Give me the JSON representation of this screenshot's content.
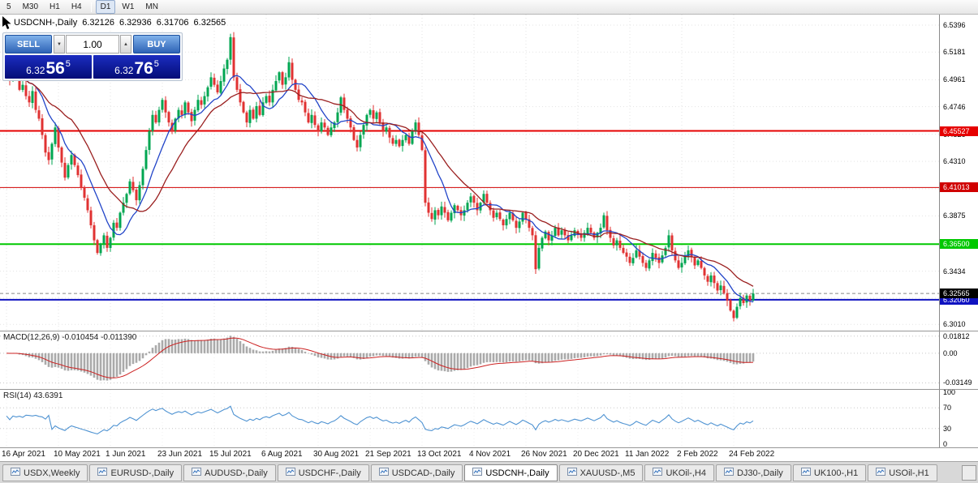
{
  "toolbar": {
    "items": [
      {
        "label": "5",
        "active": false
      },
      {
        "label": "M30",
        "active": false
      },
      {
        "label": "H1",
        "active": false
      },
      {
        "label": "H4",
        "active": false
      },
      {
        "sep": true
      },
      {
        "label": "D1",
        "active": true
      },
      {
        "label": "W1",
        "active": false
      },
      {
        "label": "MN",
        "active": false
      }
    ]
  },
  "chart": {
    "header": {
      "symbol": "USDCNH-,Daily",
      "open": "6.32126",
      "high": "6.32936",
      "low": "6.31706",
      "close": "6.32565"
    },
    "trade_panel": {
      "sell_label": "SELL",
      "buy_label": "BUY",
      "volume": "1.00",
      "up_glyph": "▲",
      "down_glyph": "▼",
      "sell_price": {
        "main": "6.32",
        "big": "56",
        "sup": "5"
      },
      "buy_price": {
        "main": "6.32",
        "big": "76",
        "sup": "5"
      }
    },
    "price_axis": {
      "ticks": [
        "6.5396",
        "6.5181",
        "6.4961",
        "6.4746",
        "6.4526",
        "6.4310",
        "6.4091",
        "6.3875",
        "6.3650",
        "6.3434",
        "6.3219",
        "6.3010"
      ]
    },
    "levels": [
      {
        "price": 6.45527,
        "label": "6.45527",
        "color": "#e60000",
        "width": 2
      },
      {
        "price": 6.41013,
        "label": "6.41013",
        "color": "#d00000",
        "width": 1
      },
      {
        "price": 6.365,
        "label": "6.36500",
        "color": "#00c800",
        "width": 2
      },
      {
        "price": 6.3206,
        "label": "6.32060",
        "color": "#0f12c0",
        "width": 2
      }
    ],
    "current_price": {
      "label": "6.32565",
      "color": "#000000"
    }
  },
  "macd": {
    "label": "MACD(12,26,9) -0.010454 -0.011390",
    "axis": [
      {
        "label": "0.01812",
        "value": 0.018125
      },
      {
        "label": "0.00",
        "value": 0
      },
      {
        "label": "-0.03149",
        "value": -0.03149
      }
    ]
  },
  "rsi": {
    "label": "RSI(14) 43.6391",
    "axis": [
      {
        "label": "100",
        "value": 100
      },
      {
        "label": "70",
        "value": 70
      },
      {
        "label": "30",
        "value": 30
      },
      {
        "label": "0",
        "value": 0
      }
    ],
    "levels": [
      70,
      30
    ]
  },
  "time_axis": {
    "labels": [
      "16 Apr 2021",
      "10 May 2021",
      "1 Jun 2021",
      "23 Jun 2021",
      "15 Jul 2021",
      "6 Aug 2021",
      "30 Aug 2021",
      "21 Sep 2021",
      "13 Oct 2021",
      "4 Nov 2021",
      "26 Nov 2021",
      "20 Dec 2021",
      "11 Jan 2022",
      "2 Feb 2022",
      "24 Feb 2022"
    ]
  },
  "tabs": {
    "items": [
      {
        "label": "USDX,Weekly",
        "active": false
      },
      {
        "label": "EURUSD-,Daily",
        "active": false
      },
      {
        "label": "AUDUSD-,Daily",
        "active": false
      },
      {
        "label": "USDCHF-,Daily",
        "active": false
      },
      {
        "label": "USDCAD-,Daily",
        "active": false
      },
      {
        "label": "USDCNH-,Daily",
        "active": true
      },
      {
        "label": "XAUUSD-,M5",
        "active": false
      },
      {
        "label": "UKOil-,H4",
        "active": false
      },
      {
        "label": "DJ30-,Daily",
        "active": false
      },
      {
        "label": "UK100-,H1",
        "active": false
      },
      {
        "label": "USOil-,H1",
        "active": false
      }
    ]
  },
  "chart_data": {
    "type": "candlestick",
    "symbol": "USDCNH",
    "timeframe": "Daily",
    "ylim": [
      6.296,
      6.548
    ],
    "spacing": 4,
    "left_pad": 8,
    "grid_x0": 8,
    "grid_dx": 64,
    "ma_fast": 10,
    "ma_slow": 21,
    "macd_scale": [
      -0.0345,
      0.0205
    ],
    "colors": {
      "up": "#00a651",
      "down": "#e03232",
      "grid": "#e3e3e3",
      "ma_fast": "#2144c8",
      "ma_slow": "#9a1f1f",
      "macd_bar": "#aaaaaa",
      "macd_signal": "#cc2222",
      "rsi": "#4f93d2",
      "level_dotted": "#c8c8c8"
    },
    "closes": [
      6.503,
      6.496,
      6.508,
      6.5,
      6.488,
      6.492,
      6.483,
      6.478,
      6.487,
      6.472,
      6.465,
      6.452,
      6.438,
      6.432,
      6.445,
      6.458,
      6.442,
      6.43,
      6.418,
      6.428,
      6.436,
      6.428,
      6.42,
      6.41,
      6.402,
      6.392,
      6.38,
      6.368,
      6.358,
      6.365,
      6.372,
      6.362,
      6.37,
      6.382,
      6.378,
      6.39,
      6.398,
      6.405,
      6.415,
      6.408,
      6.4,
      6.412,
      6.425,
      6.44,
      6.455,
      6.468,
      6.462,
      6.472,
      6.48,
      6.47,
      6.462,
      6.455,
      6.465,
      6.472,
      6.468,
      6.478,
      6.47,
      6.463,
      6.472,
      6.48,
      6.476,
      6.483,
      6.49,
      6.498,
      6.492,
      6.486,
      6.495,
      6.505,
      6.512,
      6.53,
      6.498,
      6.488,
      6.478,
      6.47,
      6.462,
      6.472,
      6.465,
      6.475,
      6.468,
      6.478,
      6.483,
      6.478,
      6.488,
      6.495,
      6.502,
      6.492,
      6.498,
      6.51,
      6.496,
      6.488,
      6.48,
      6.478,
      6.47,
      6.462,
      6.468,
      6.46,
      6.455,
      6.462,
      6.458,
      6.452,
      6.458,
      6.462,
      6.47,
      6.482,
      6.472,
      6.465,
      6.458,
      6.448,
      6.442,
      6.452,
      6.46,
      6.468,
      6.472,
      6.465,
      6.47,
      6.462,
      6.455,
      6.458,
      6.45,
      6.445,
      6.448,
      6.443,
      6.448,
      6.452,
      6.445,
      6.455,
      6.462,
      6.452,
      6.44,
      6.398,
      6.39,
      6.385,
      6.392,
      6.388,
      6.395,
      6.39,
      6.384,
      6.39,
      6.396,
      6.392,
      6.388,
      6.392,
      6.398,
      6.403,
      6.398,
      6.392,
      6.398,
      6.405,
      6.398,
      6.392,
      6.386,
      6.39,
      6.385,
      6.38,
      6.385,
      6.39,
      6.384,
      6.378,
      6.383,
      6.39,
      6.385,
      6.378,
      6.372,
      6.345,
      6.362,
      6.37,
      6.375,
      6.368,
      6.372,
      6.378,
      6.372,
      6.376,
      6.372,
      6.368,
      6.372,
      6.376,
      6.373,
      6.37,
      6.374,
      6.378,
      6.374,
      6.37,
      6.374,
      6.378,
      6.388,
      6.376,
      6.37,
      6.364,
      6.368,
      6.362,
      6.358,
      6.355,
      6.35,
      6.354,
      6.36,
      6.355,
      6.35,
      6.346,
      6.352,
      6.358,
      6.354,
      6.35,
      6.356,
      6.362,
      6.372,
      6.36,
      6.352,
      6.346,
      6.35,
      6.355,
      6.36,
      6.355,
      6.348,
      6.352,
      6.346,
      6.34,
      6.335,
      6.34,
      6.334,
      6.328,
      6.332,
      6.326,
      6.32,
      6.312,
      6.306,
      6.315,
      6.322,
      6.318,
      6.324,
      6.32,
      6.3256
    ]
  }
}
